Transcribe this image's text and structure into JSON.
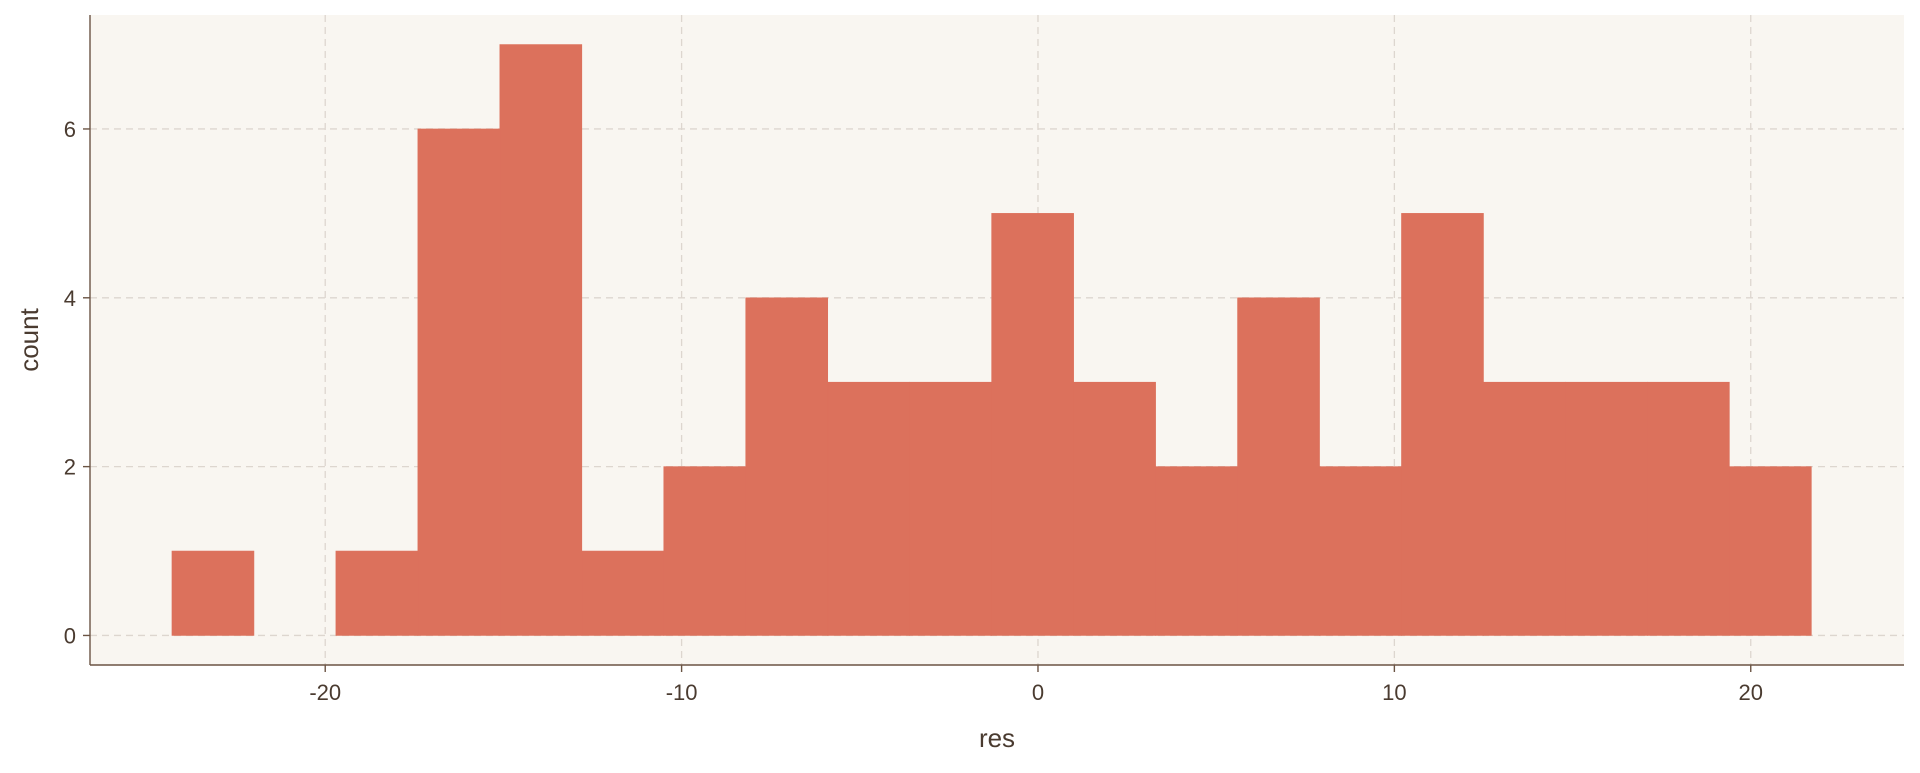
{
  "chart_data": {
    "type": "bar",
    "subtype": "histogram",
    "xlabel": "res",
    "ylabel": "count",
    "xlim": [
      -26.6,
      24.3
    ],
    "ylim": [
      -0.35,
      7.35
    ],
    "x_ticks": [
      -20,
      -10,
      0,
      10,
      20
    ],
    "x_tick_labels": [
      "-20",
      "-10",
      "0",
      "10",
      "20"
    ],
    "y_ticks": [
      0,
      2,
      4,
      6
    ],
    "y_tick_labels": [
      "0",
      "2",
      "4",
      "6"
    ],
    "grid": true,
    "grid_style": "dashed",
    "legend": "none",
    "bin_width": 2.3,
    "bins": [
      {
        "x0": -24.3,
        "x1": -22.0,
        "count": 1
      },
      {
        "x0": -22.0,
        "x1": -19.7,
        "count": 0
      },
      {
        "x0": -19.7,
        "x1": -17.4,
        "count": 1
      },
      {
        "x0": -17.4,
        "x1": -15.1,
        "count": 6
      },
      {
        "x0": -15.1,
        "x1": -12.8,
        "count": 7
      },
      {
        "x0": -12.8,
        "x1": -10.5,
        "count": 1
      },
      {
        "x0": -10.5,
        "x1": -8.2,
        "count": 2
      },
      {
        "x0": -8.2,
        "x1": -5.9,
        "count": 4
      },
      {
        "x0": -5.9,
        "x1": -3.6,
        "count": 3
      },
      {
        "x0": -3.6,
        "x1": -1.3,
        "count": 3
      },
      {
        "x0": -1.3,
        "x1": 1.0,
        "count": 5
      },
      {
        "x0": 1.0,
        "x1": 3.3,
        "count": 3
      },
      {
        "x0": 3.3,
        "x1": 5.6,
        "count": 2
      },
      {
        "x0": 5.6,
        "x1": 7.9,
        "count": 4
      },
      {
        "x0": 7.9,
        "x1": 10.2,
        "count": 2
      },
      {
        "x0": 10.2,
        "x1": 12.5,
        "count": 5
      },
      {
        "x0": 12.5,
        "x1": 14.8,
        "count": 3
      },
      {
        "x0": 14.8,
        "x1": 17.1,
        "count": 3
      },
      {
        "x0": 17.1,
        "x1": 19.4,
        "count": 3
      },
      {
        "x0": 19.4,
        "x1": 21.7,
        "count": 2
      }
    ],
    "colors": {
      "bar": "#DC715C",
      "panel_background": "#F9F6F1",
      "grid": "#DDD6CF",
      "axis_line": "#6B5444",
      "text": "#4A3B30"
    }
  }
}
